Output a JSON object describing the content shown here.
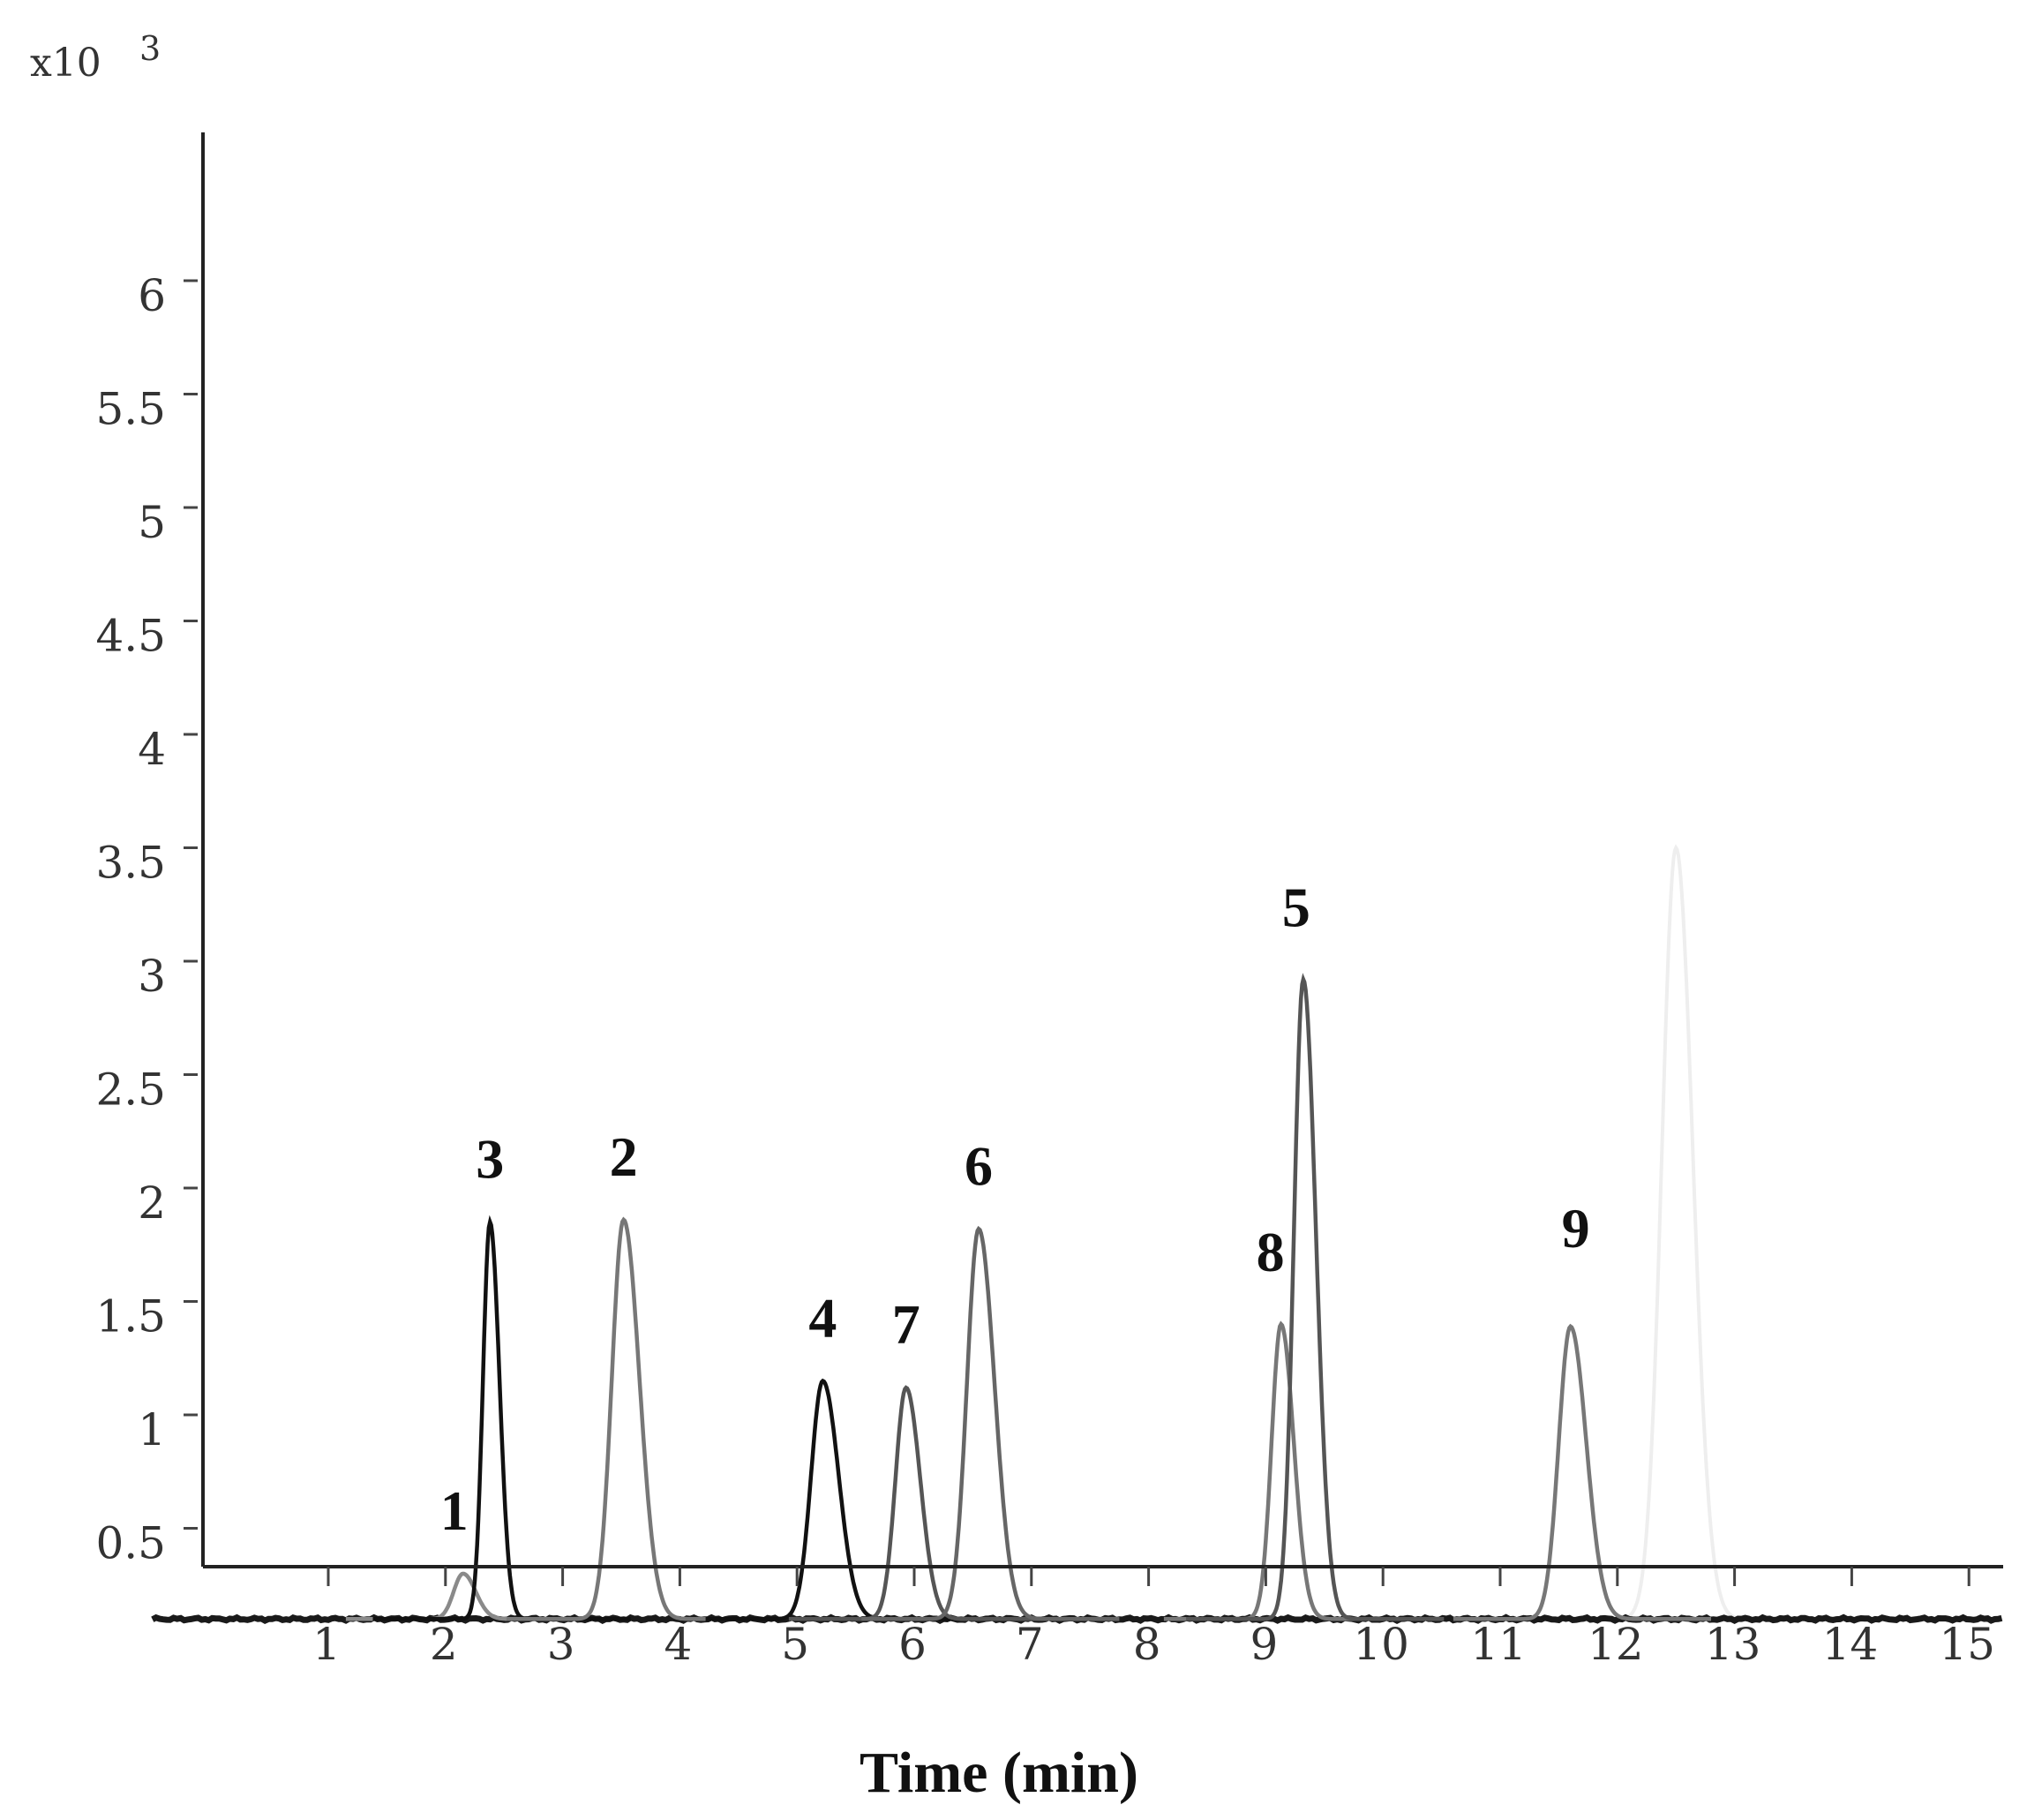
{
  "chart_data": {
    "type": "line",
    "title": "",
    "scale_label": "x10",
    "scale_exponent": "3",
    "xlabel": "Time (min)",
    "ylabel": "",
    "xlim": [
      0,
      15.3
    ],
    "ylim": [
      0,
      6.2
    ],
    "baseline": 0.1,
    "grid": false,
    "x_ticks": [
      "1",
      "2",
      "3",
      "4",
      "5",
      "6",
      "7",
      "8",
      "9",
      "10",
      "11",
      "12",
      "13",
      "14",
      "15"
    ],
    "y_ticks": [
      "0.5",
      "1",
      "1.5",
      "2",
      "2.5",
      "3",
      "3.5",
      "4",
      "4.5",
      "5",
      "5.5",
      "6"
    ],
    "peaks": [
      {
        "label": "1",
        "x": 2.15,
        "height": 0.2,
        "width": 0.08,
        "color": "#8a8a8a"
      },
      {
        "label": "3",
        "x": 2.38,
        "height": 1.75,
        "width": 0.06,
        "color": "#111111"
      },
      {
        "label": "2",
        "x": 3.52,
        "height": 1.76,
        "width": 0.1,
        "color": "#777777"
      },
      {
        "label": "4",
        "x": 5.22,
        "height": 1.05,
        "width": 0.1,
        "color": "#111111"
      },
      {
        "label": "7",
        "x": 5.93,
        "height": 1.02,
        "width": 0.09,
        "color": "#555555"
      },
      {
        "label": "6",
        "x": 6.55,
        "height": 1.72,
        "width": 0.1,
        "color": "#666666"
      },
      {
        "label": "8",
        "x": 9.13,
        "height": 1.3,
        "width": 0.08,
        "color": "#777777"
      },
      {
        "label": "5",
        "x": 9.32,
        "height": 2.82,
        "width": 0.08,
        "color": "#555555"
      },
      {
        "label": "9",
        "x": 11.6,
        "height": 1.29,
        "width": 0.1,
        "color": "#777777"
      }
    ],
    "faint_peak": {
      "x": 12.5,
      "height": 3.4,
      "width": 0.12,
      "color": "#eeeeee"
    }
  }
}
